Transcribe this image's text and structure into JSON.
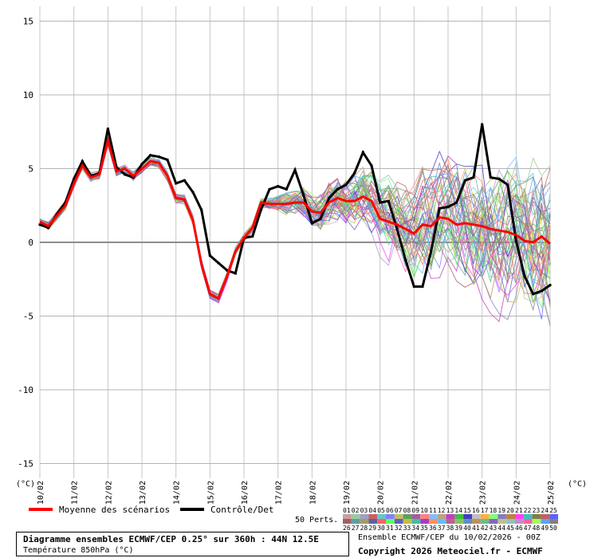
{
  "chart_data": {
    "type": "line",
    "ylabel": "(°C)",
    "ylabel_right": "(°C)",
    "yticks": [
      15,
      10,
      5,
      0,
      -5,
      -10,
      -15
    ],
    "ylim": [
      -16,
      16
    ],
    "xticks": [
      "10/02",
      "11/02",
      "12/02",
      "13/02",
      "14/02",
      "15/02",
      "16/02",
      "17/02",
      "18/02",
      "19/02",
      "20/02",
      "21/02",
      "22/02",
      "23/02",
      "24/02",
      "25/02"
    ],
    "x_range_days": [
      10,
      25
    ],
    "grid": true,
    "legend": [
      {
        "label": "Moyenne des scénarios",
        "color": "#ff0000"
      },
      {
        "label": "Contrôle/Det",
        "color": "#000000"
      }
    ],
    "series": [
      {
        "name": "Moyenne des scénarios",
        "color": "#ff0000",
        "x": [
          10.0,
          10.25,
          10.5,
          10.75,
          11.0,
          11.25,
          11.5,
          11.75,
          12.0,
          12.25,
          12.5,
          12.75,
          13.0,
          13.25,
          13.5,
          13.75,
          14.0,
          14.25,
          14.5,
          14.75,
          15.0,
          15.25,
          15.5,
          15.75,
          16.0,
          16.25,
          16.5,
          16.75,
          17.0,
          17.25,
          17.5,
          17.75,
          18.0,
          18.25,
          18.5,
          18.75,
          19.0,
          19.25,
          19.5,
          19.75,
          20.0,
          20.25,
          20.5,
          20.75,
          21.0,
          21.25,
          21.5,
          21.75,
          22.0,
          22.25,
          22.5,
          22.75,
          23.0,
          23.25,
          23.5,
          23.75,
          24.0,
          24.25,
          24.5,
          24.75,
          25.0
        ],
        "values": [
          1.4,
          1.1,
          1.8,
          2.5,
          4.0,
          5.2,
          4.4,
          4.6,
          6.9,
          4.8,
          5.0,
          4.5,
          5.0,
          5.5,
          5.4,
          4.5,
          3.0,
          2.9,
          1.5,
          -1.5,
          -3.5,
          -3.8,
          -2.3,
          -0.6,
          0.3,
          1.0,
          2.7,
          2.6,
          2.6,
          2.6,
          2.7,
          2.7,
          2.1,
          2.0,
          2.7,
          3.0,
          2.8,
          2.8,
          3.1,
          2.8,
          1.6,
          1.4,
          1.2,
          0.9,
          0.6,
          1.2,
          1.1,
          1.7,
          1.6,
          1.2,
          1.3,
          1.2,
          1.1,
          0.9,
          0.8,
          0.7,
          0.5,
          0.1,
          0.0,
          0.4,
          -0.1
        ]
      },
      {
        "name": "Contrôle/Det",
        "color": "#000000",
        "x": [
          10.0,
          10.25,
          10.5,
          10.75,
          11.0,
          11.25,
          11.5,
          11.75,
          12.0,
          12.25,
          12.5,
          12.75,
          13.0,
          13.25,
          13.5,
          13.75,
          14.0,
          14.25,
          14.5,
          14.75,
          15.0,
          15.25,
          15.5,
          15.75,
          16.0,
          16.25,
          16.5,
          16.75,
          17.0,
          17.25,
          17.5,
          17.75,
          18.0,
          18.25,
          18.5,
          18.75,
          19.0,
          19.25,
          19.5,
          19.75,
          20.0,
          20.25,
          20.5,
          20.75,
          21.0,
          21.25,
          21.5,
          21.75,
          22.0,
          22.25,
          22.5,
          22.75,
          23.0,
          23.25,
          23.5,
          23.75,
          24.0,
          24.25,
          24.5,
          24.75,
          25.0
        ],
        "values": [
          1.2,
          1.0,
          1.9,
          2.7,
          4.3,
          5.5,
          4.5,
          4.7,
          7.7,
          5.1,
          4.6,
          4.4,
          5.3,
          5.9,
          5.8,
          5.6,
          4.0,
          4.2,
          3.4,
          2.2,
          -0.9,
          -1.4,
          -1.9,
          -2.1,
          0.3,
          0.4,
          2.2,
          3.6,
          3.8,
          3.6,
          4.9,
          3.2,
          1.3,
          1.6,
          3.0,
          3.6,
          3.9,
          4.7,
          6.1,
          5.2,
          2.7,
          2.8,
          0.9,
          -1.2,
          -3.0,
          -3.0,
          -0.6,
          2.3,
          2.4,
          2.7,
          4.2,
          4.4,
          8.0,
          4.4,
          4.3,
          3.9,
          0.1,
          -2.3,
          -3.5,
          -3.3,
          -2.9
        ]
      }
    ],
    "perturbations": {
      "label": "50 Perts.",
      "numbers_top": [
        "01",
        "02",
        "03",
        "04",
        "05",
        "06",
        "07",
        "08",
        "09",
        "10",
        "11",
        "12",
        "13",
        "14",
        "15",
        "16",
        "17",
        "18",
        "19",
        "20",
        "21",
        "22",
        "23",
        "24",
        "25"
      ],
      "numbers_bottom": [
        "26",
        "27",
        "28",
        "29",
        "30",
        "31",
        "32",
        "33",
        "34",
        "35",
        "36",
        "37",
        "38",
        "39",
        "40",
        "41",
        "42",
        "43",
        "44",
        "45",
        "46",
        "47",
        "48",
        "49",
        "50"
      ],
      "colors_top": [
        "#c8a0a0",
        "#a0c8a0",
        "#a0a0c8",
        "#c86060",
        "#60c8c8",
        "#8080ff",
        "#c0c060",
        "#60a060",
        "#a060a0",
        "#ff8080",
        "#80c0ff",
        "#c0a080",
        "#c040c0",
        "#40c040",
        "#4040c0",
        "#c0c0c0",
        "#ffb040",
        "#80ff80",
        "#8080c0",
        "#c08040",
        "#ff40ff",
        "#40c0c0",
        "#808040",
        "#c06060",
        "#6060ff"
      ],
      "colors_bottom": [
        "#a06060",
        "#60a0a0",
        "#a0a060",
        "#6060a0",
        "#ff6060",
        "#60ff60",
        "#6060c0",
        "#c0c040",
        "#40c0a0",
        "#a040c0",
        "#ff9060",
        "#60c0ff",
        "#c06090",
        "#90c060",
        "#6090c0",
        "#c09060",
        "#60c090",
        "#9060c0",
        "#c0c090",
        "#90c0c0",
        "#c090c0",
        "#ff60a0",
        "#a0ff60",
        "#60a0ff",
        "#808080"
      ]
    }
  },
  "footer": {
    "title": "Diagramme ensembles ECMWF/CEP 0.25° sur 360h : 44N 12.5E",
    "subtitle": "Température 850hPa (°C)",
    "info": "Ensemble ECMWF/CEP du 10/02/2026 - 00Z",
    "copyright": "Copyright 2026 Meteociel.fr - ECMWF"
  }
}
